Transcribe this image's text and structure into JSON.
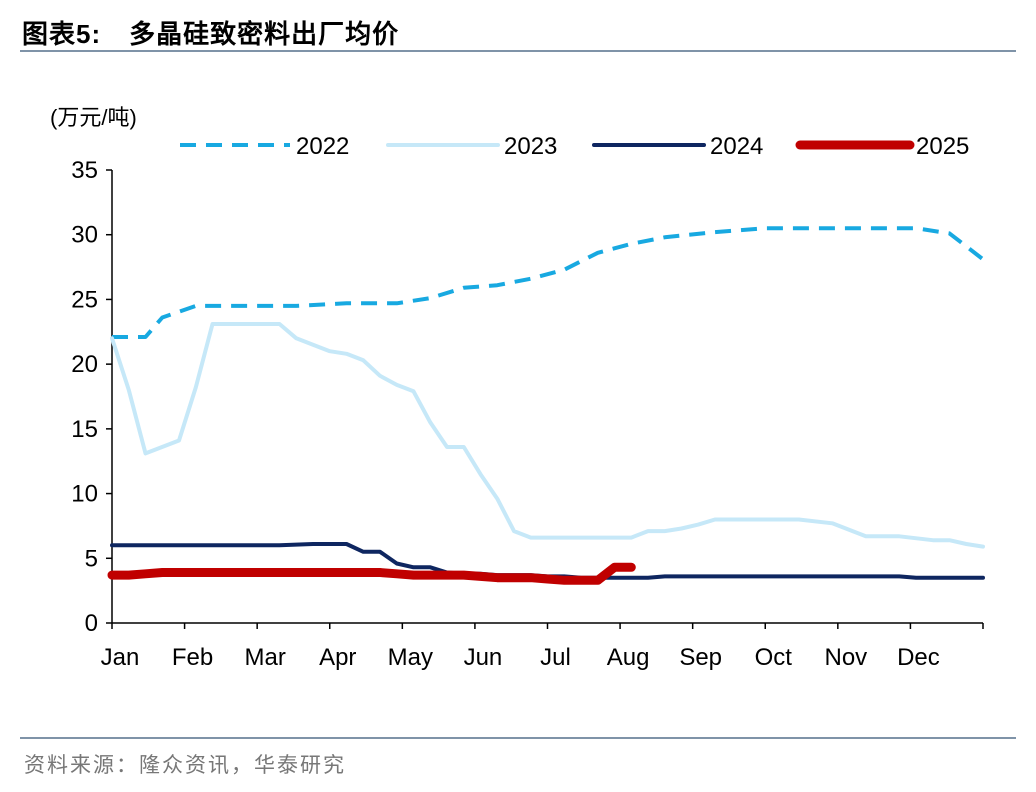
{
  "figure": {
    "title_prefix": "图表",
    "title_number": "5:",
    "title_text": "多晶硅致密料出厂均价",
    "source": "资料来源：隆众资讯，华泰研究"
  },
  "chart_data": {
    "type": "line",
    "title": "多晶硅致密料出厂均价",
    "ylabel": "(万元/吨)",
    "xlabel": "",
    "ylim": [
      0,
      35
    ],
    "yticks": [
      0,
      5,
      10,
      15,
      20,
      25,
      30,
      35
    ],
    "x_ticks": [
      "Jan",
      "Feb",
      "Mar",
      "Apr",
      "May",
      "Jun",
      "Jul",
      "Aug",
      "Sep",
      "Oct",
      "Nov",
      "Dec"
    ],
    "x_unit": "week of year (1-53)",
    "grid": false,
    "legend_position": "top",
    "series": [
      {
        "name": "2022",
        "color": "#18a9e1",
        "style": "dashed",
        "x": [
          1,
          3,
          4,
          6,
          8,
          10,
          12,
          15,
          18,
          20,
          22,
          24,
          26,
          28,
          30,
          32,
          34,
          37,
          40,
          43,
          46,
          49,
          51,
          53
        ],
        "y": [
          22.1,
          22.1,
          23.6,
          24.5,
          24.5,
          24.5,
          24.5,
          24.7,
          24.7,
          25.1,
          25.9,
          26.1,
          26.6,
          27.3,
          28.6,
          29.3,
          29.8,
          30.2,
          30.5,
          30.5,
          30.5,
          30.5,
          30.1,
          28.1
        ]
      },
      {
        "name": "2023",
        "color": "#c6e8f8",
        "style": "solid",
        "x": [
          1,
          2,
          3,
          5,
          6,
          7,
          8,
          9,
          11,
          12,
          13,
          14,
          15,
          16,
          17,
          18,
          19,
          20,
          21,
          22,
          23,
          24,
          25,
          26,
          27,
          28,
          29,
          30,
          31,
          32,
          33,
          34,
          35,
          36,
          37,
          38,
          39,
          40,
          42,
          44,
          46,
          48,
          50,
          51,
          52,
          53
        ],
        "y": [
          22.0,
          18,
          13.1,
          14.1,
          18.2,
          23.1,
          23.1,
          23.1,
          23.1,
          22.0,
          21.5,
          21.0,
          20.8,
          20.3,
          19.1,
          18.4,
          17.9,
          15.5,
          13.6,
          13.6,
          11.5,
          9.6,
          7.1,
          6.6,
          6.6,
          6.6,
          6.6,
          6.6,
          6.6,
          6.6,
          7.1,
          7.1,
          7.3,
          7.6,
          8.0,
          8.0,
          8.0,
          8.0,
          8.0,
          7.7,
          6.7,
          6.7,
          6.4,
          6.4,
          6.1,
          5.9
        ]
      },
      {
        "name": "2024",
        "color": "#0e2660",
        "style": "solid",
        "x": [
          1,
          4,
          8,
          10,
          11,
          13,
          14,
          15,
          16,
          17,
          18,
          19,
          20,
          21,
          22,
          23,
          24,
          25,
          26,
          27,
          28,
          29,
          30,
          31,
          32,
          33,
          34,
          35,
          40,
          45,
          48,
          49,
          50,
          53
        ],
        "y": [
          6.0,
          6.0,
          6.0,
          6.0,
          6.0,
          6.1,
          6.1,
          6.1,
          5.5,
          5.5,
          4.6,
          4.3,
          4.3,
          3.9,
          3.8,
          3.8,
          3.7,
          3.7,
          3.7,
          3.6,
          3.6,
          3.5,
          3.5,
          3.5,
          3.5,
          3.5,
          3.6,
          3.6,
          3.6,
          3.6,
          3.6,
          3.5,
          3.5,
          3.5
        ]
      },
      {
        "name": "2025",
        "color": "#c00000",
        "style": "solid",
        "x": [
          1,
          2,
          3,
          4,
          6,
          8,
          10,
          12,
          14,
          15,
          16,
          17,
          18,
          19,
          20,
          21,
          22,
          23,
          24,
          25,
          26,
          27,
          28,
          29,
          30,
          31,
          32
        ],
        "y": [
          3.7,
          3.7,
          3.8,
          3.9,
          3.9,
          3.9,
          3.9,
          3.9,
          3.9,
          3.9,
          3.9,
          3.9,
          3.8,
          3.7,
          3.7,
          3.7,
          3.7,
          3.6,
          3.5,
          3.5,
          3.5,
          3.4,
          3.3,
          3.3,
          3.3,
          4.3,
          4.3
        ]
      }
    ]
  }
}
